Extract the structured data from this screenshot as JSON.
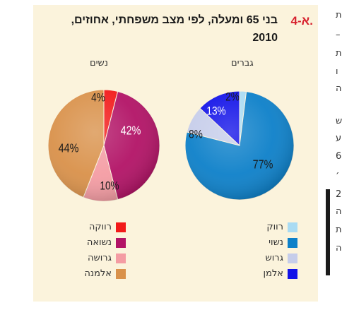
{
  "title": {
    "number": "א-4.",
    "line1": "בני 65 ומעלה, לפי מצב משפחתי, אחוזים,",
    "line2": "2010"
  },
  "chart_data": [
    {
      "type": "pie",
      "group_label": "גברים",
      "series": [
        {
          "name": "רווק",
          "value": 2,
          "label": "2%",
          "color": "#a9dbf3"
        },
        {
          "name": "נשוי",
          "value": 77,
          "label": "77%",
          "color": "#0d80c9"
        },
        {
          "name": "גרוש",
          "value": 8,
          "label": "8%",
          "color": "#c6cdea"
        },
        {
          "name": "אלמן",
          "value": 13,
          "label": "13%",
          "color": "#1212e8"
        }
      ]
    },
    {
      "type": "pie",
      "group_label": "נשים",
      "series": [
        {
          "name": "רווקה",
          "value": 4,
          "label": "4%",
          "color": "#f21a1a"
        },
        {
          "name": "נשואה",
          "value": 42,
          "label": "42%",
          "color": "#b21366"
        },
        {
          "name": "גרושה",
          "value": 10,
          "label": "10%",
          "color": "#f49ca3"
        },
        {
          "name": "אלמנה",
          "value": 44,
          "label": "44%",
          "color": "#d9914a"
        }
      ]
    }
  ],
  "side_text": [
    "ת",
    "–",
    "ת",
    "ו",
    "ה",
    "ש",
    "ע",
    "6",
    "׳",
    "2",
    "ה",
    "ת",
    "ה"
  ]
}
